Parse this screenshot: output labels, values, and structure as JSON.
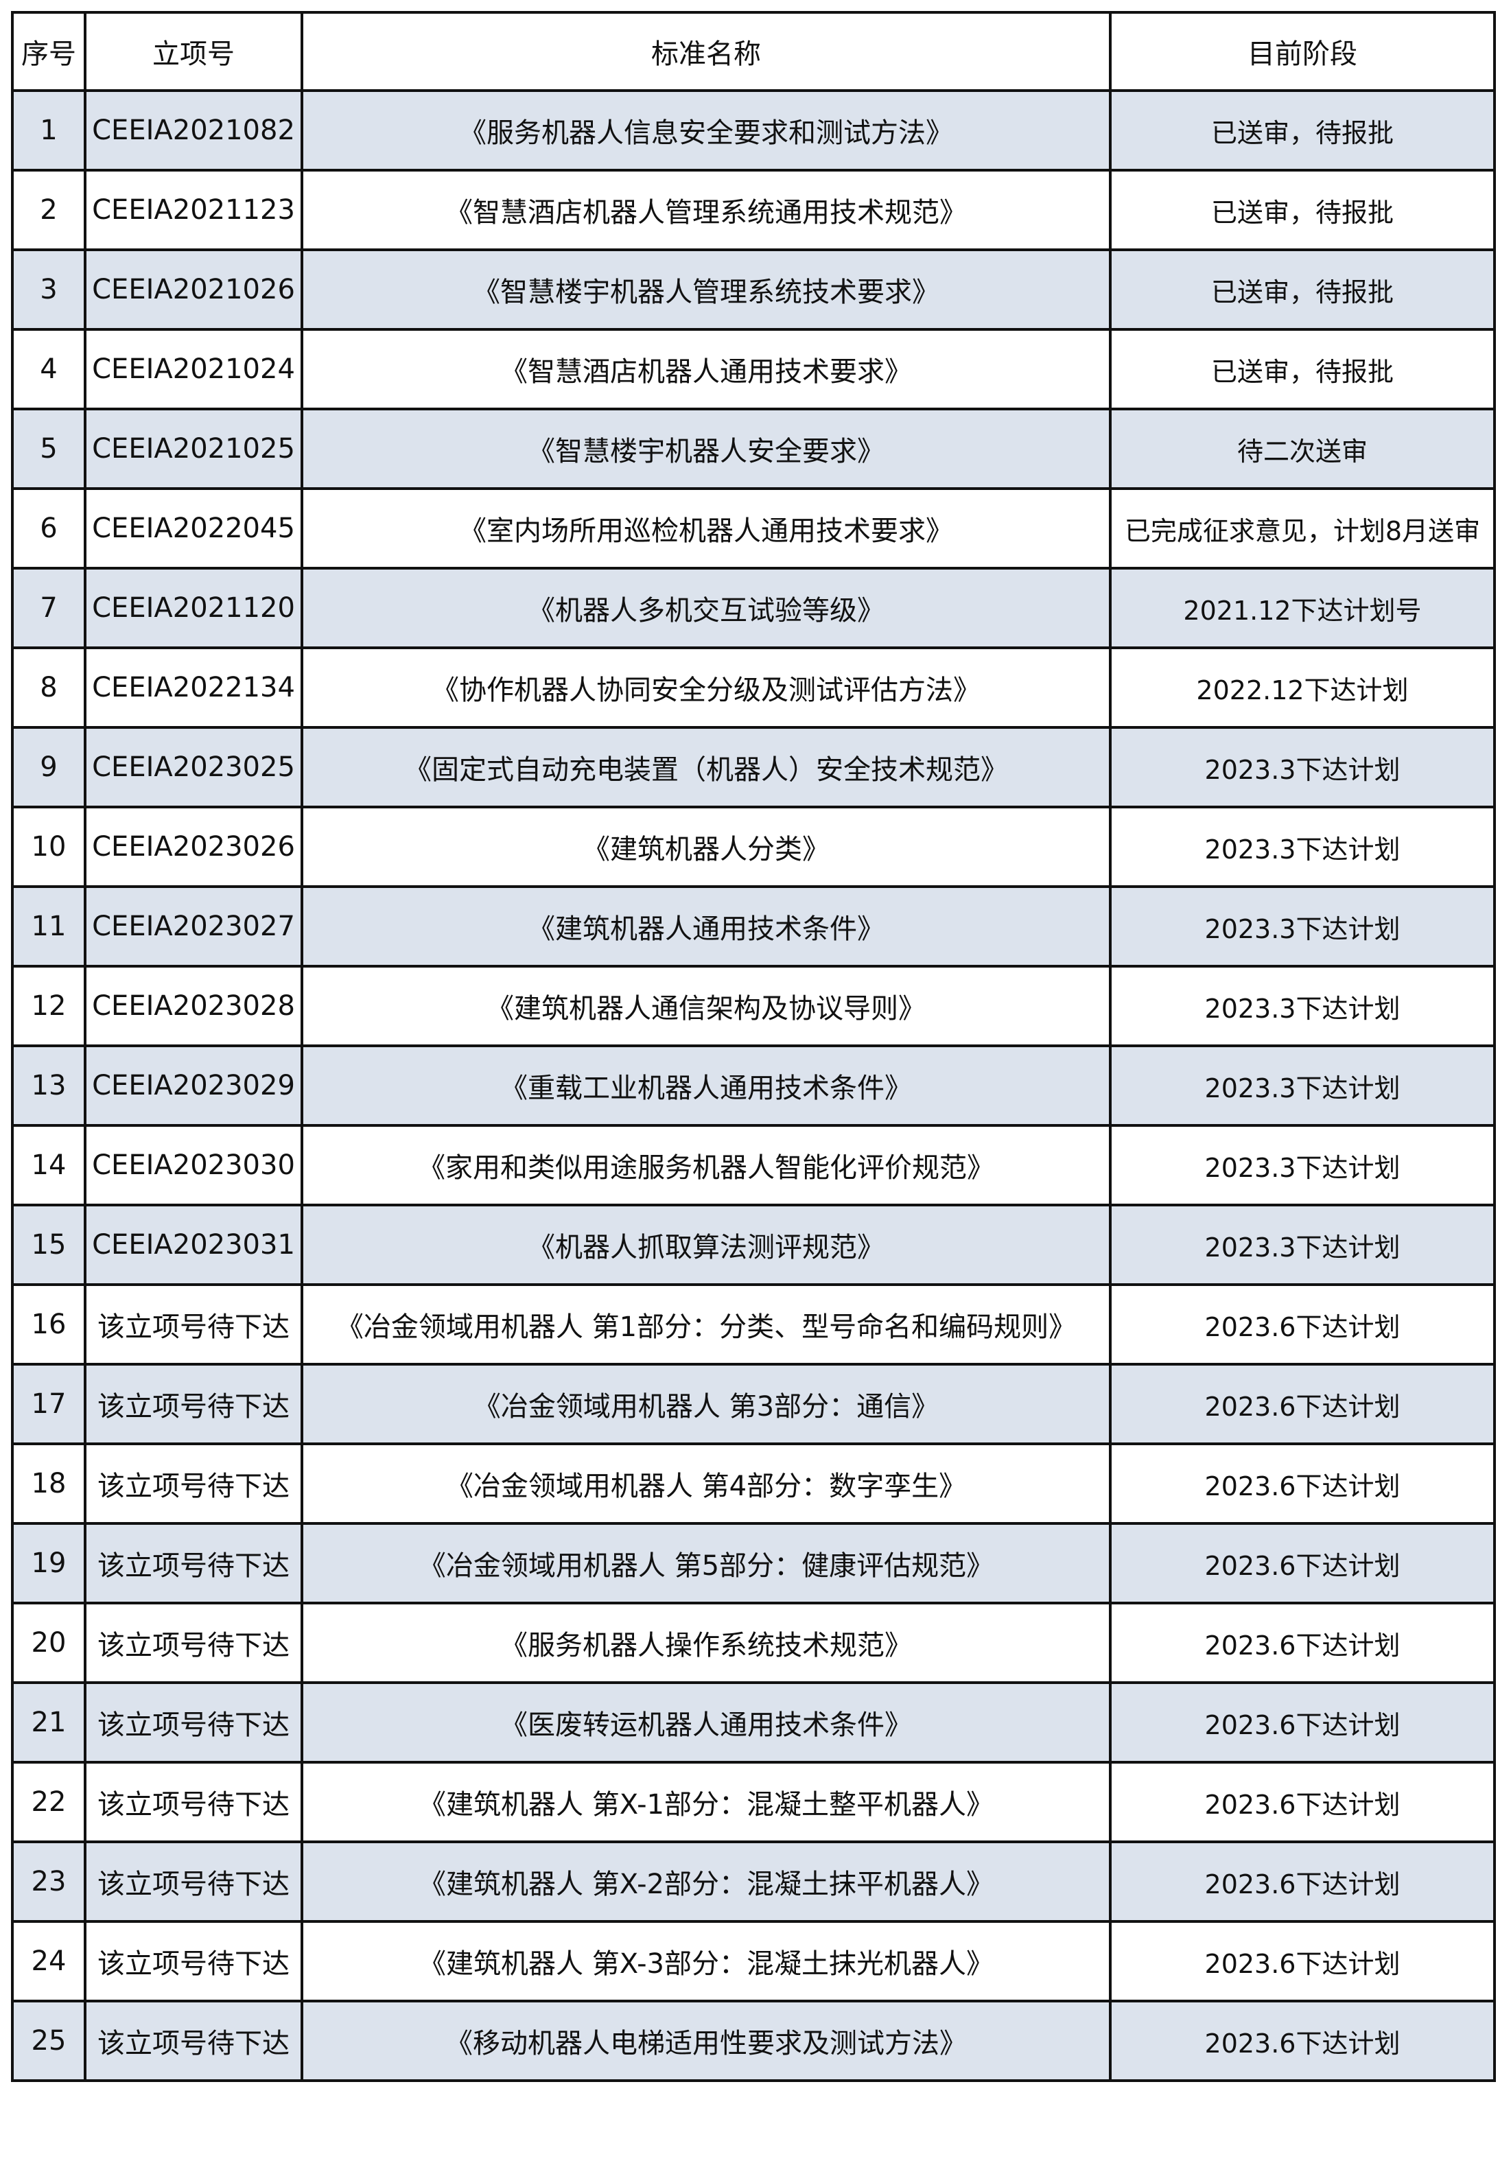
{
  "table": {
    "headers": [
      "序号",
      "立项号",
      "标准名称",
      "目前阶段"
    ],
    "row_shading_color": "#dce3ed",
    "rows": [
      {
        "no": "1",
        "project_id": "CEEIA2021082",
        "name": "《服务机器人信息安全要求和测试方法》",
        "stage": "已送审，待报批"
      },
      {
        "no": "2",
        "project_id": "CEEIA2021123",
        "name": "《智慧酒店机器人管理系统通用技术规范》",
        "stage": "已送审，待报批"
      },
      {
        "no": "3",
        "project_id": "CEEIA2021026",
        "name": "《智慧楼宇机器人管理系统技术要求》",
        "stage": "已送审，待报批"
      },
      {
        "no": "4",
        "project_id": "CEEIA2021024",
        "name": "《智慧酒店机器人通用技术要求》",
        "stage": "已送审，待报批"
      },
      {
        "no": "5",
        "project_id": "CEEIA2021025",
        "name": "《智慧楼宇机器人安全要求》",
        "stage": "待二次送审"
      },
      {
        "no": "6",
        "project_id": "CEEIA2022045",
        "name": "《室内场所用巡检机器人通用技术要求》",
        "stage": "已完成征求意见，计划8月送审"
      },
      {
        "no": "7",
        "project_id": "CEEIA2021120",
        "name": "《机器人多机交互试验等级》",
        "stage": "2021.12下达计划号"
      },
      {
        "no": "8",
        "project_id": "CEEIA2022134",
        "name": "《协作机器人协同安全分级及测试评估方法》",
        "stage": "2022.12下达计划"
      },
      {
        "no": "9",
        "project_id": "CEEIA2023025",
        "name": "《固定式自动充电装置（机器人）安全技术规范》",
        "stage": "2023.3下达计划"
      },
      {
        "no": "10",
        "project_id": "CEEIA2023026",
        "name": "《建筑机器人分类》",
        "stage": "2023.3下达计划"
      },
      {
        "no": "11",
        "project_id": "CEEIA2023027",
        "name": "《建筑机器人通用技术条件》",
        "stage": "2023.3下达计划"
      },
      {
        "no": "12",
        "project_id": "CEEIA2023028",
        "name": "《建筑机器人通信架构及协议导则》",
        "stage": "2023.3下达计划"
      },
      {
        "no": "13",
        "project_id": "CEEIA2023029",
        "name": "《重载工业机器人通用技术条件》",
        "stage": "2023.3下达计划"
      },
      {
        "no": "14",
        "project_id": "CEEIA2023030",
        "name": "《家用和类似用途服务机器人智能化评价规范》",
        "stage": "2023.3下达计划"
      },
      {
        "no": "15",
        "project_id": "CEEIA2023031",
        "name": "《机器人抓取算法测评规范》",
        "stage": "2023.3下达计划"
      },
      {
        "no": "16",
        "project_id": "该立项号待下达",
        "name": "《冶金领域用机器人  第1部分：分类、型号命名和编码规则》",
        "stage": "2023.6下达计划"
      },
      {
        "no": "17",
        "project_id": "该立项号待下达",
        "name": "《冶金领域用机器人  第3部分：通信》",
        "stage": "2023.6下达计划"
      },
      {
        "no": "18",
        "project_id": "该立项号待下达",
        "name": "《冶金领域用机器人  第4部分：数字孪生》",
        "stage": "2023.6下达计划"
      },
      {
        "no": "19",
        "project_id": "该立项号待下达",
        "name": "《冶金领域用机器人 第5部分：健康评估规范》",
        "stage": "2023.6下达计划"
      },
      {
        "no": "20",
        "project_id": "该立项号待下达",
        "name": "《服务机器人操作系统技术规范》",
        "stage": "2023.6下达计划"
      },
      {
        "no": "21",
        "project_id": "该立项号待下达",
        "name": "《医废转运机器人通用技术条件》",
        "stage": "2023.6下达计划"
      },
      {
        "no": "22",
        "project_id": "该立项号待下达",
        "name": "《建筑机器人 第X-1部分：混凝土整平机器人》",
        "stage": "2023.6下达计划"
      },
      {
        "no": "23",
        "project_id": "该立项号待下达",
        "name": "《建筑机器人  第X-2部分：混凝土抹平机器人》",
        "stage": "2023.6下达计划"
      },
      {
        "no": "24",
        "project_id": "该立项号待下达",
        "name": "《建筑机器人 第X-3部分：混凝土抹光机器人》",
        "stage": "2023.6下达计划"
      },
      {
        "no": "25",
        "project_id": "该立项号待下达",
        "name": "《移动机器人电梯适用性要求及测试方法》",
        "stage": "2023.6下达计划"
      }
    ]
  }
}
